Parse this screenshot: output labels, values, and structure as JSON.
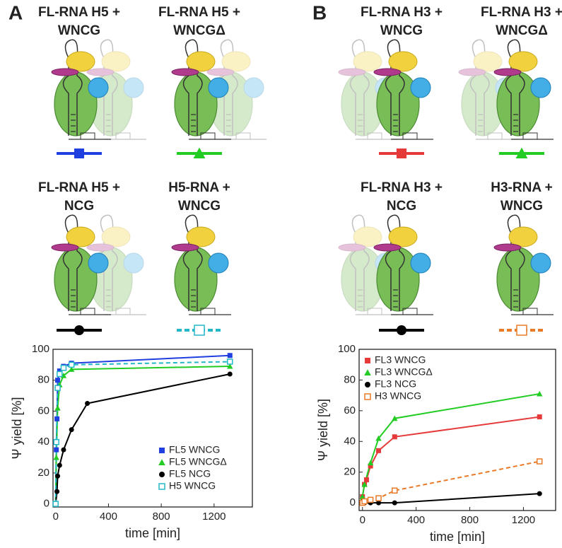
{
  "panels": [
    {
      "label": "A",
      "constructs": [
        {
          "title": [
            "FL-RNA H5 +",
            "WNCG"
          ]
        },
        {
          "title": [
            "FL-RNA H5 +",
            "WNCGΔ"
          ]
        },
        {
          "title": [
            "FL-RNA H5 +",
            "NCG"
          ]
        },
        {
          "title": [
            "H5-RNA +",
            "WNCG"
          ]
        }
      ]
    },
    {
      "label": "B",
      "constructs": [
        {
          "title": [
            "FL-RNA H3 +",
            "WNCG"
          ]
        },
        {
          "title": [
            "FL-RNA H3 +",
            "WNCGΔ"
          ]
        },
        {
          "title": [
            "FL-RNA H3 +",
            "NCG"
          ]
        },
        {
          "title": [
            "H3-RNA +",
            "WNCG"
          ]
        }
      ]
    }
  ],
  "chart_data": [
    {
      "type": "scatter",
      "xlabel": "time [min]",
      "ylabel": "Ψ yield [%]",
      "xlim": [
        -20,
        1490
      ],
      "xticks": [
        0,
        400,
        800,
        1200
      ],
      "ylim": [
        -2,
        100
      ],
      "yticks": [
        0,
        20,
        40,
        60,
        80,
        100
      ],
      "legend": "lower right",
      "series": [
        {
          "name": "FL5 WNCG",
          "color": "#1f3fe0",
          "marker": "square",
          "dashed": false,
          "x": [
            0,
            5,
            10,
            15,
            30,
            60,
            120,
            1320
          ],
          "values": [
            0,
            35,
            55,
            80,
            86,
            89,
            91,
            96
          ]
        },
        {
          "name": "FL5 WNCGΔ",
          "color": "#22cc22",
          "marker": "triangle",
          "dashed": false,
          "x": [
            0,
            5,
            15,
            30,
            60,
            120,
            1320
          ],
          "values": [
            0,
            30,
            62,
            77,
            83,
            87,
            89
          ]
        },
        {
          "name": "FL5 NCG",
          "color": "#000000",
          "marker": "circle",
          "dashed": false,
          "x": [
            0,
            10,
            15,
            30,
            60,
            120,
            240,
            1320
          ],
          "values": [
            0,
            8,
            18,
            25,
            35,
            48,
            65,
            84
          ]
        },
        {
          "name": "H5 WNCG",
          "color": "#22b8c8",
          "marker": "open-square",
          "dashed": true,
          "x": [
            0,
            5,
            15,
            30,
            60,
            120,
            1320
          ],
          "values": [
            0,
            40,
            75,
            84,
            88,
            90,
            92
          ]
        }
      ]
    },
    {
      "type": "scatter",
      "xlabel": "time [min]",
      "ylabel": "Ψ yield [%]",
      "xlim": [
        -25,
        1440
      ],
      "xticks": [
        0,
        400,
        800,
        1200
      ],
      "ylim": [
        -5,
        100
      ],
      "yticks": [
        0,
        20,
        40,
        60,
        80,
        100
      ],
      "legend": "upper left",
      "series": [
        {
          "name": "FL3 WNCG",
          "color": "#e63a3a",
          "marker": "square",
          "dashed": false,
          "x": [
            0,
            15,
            30,
            60,
            120,
            240,
            1320
          ],
          "values": [
            4,
            12,
            15,
            24,
            34,
            43,
            56
          ]
        },
        {
          "name": "FL3 WNCGΔ",
          "color": "#22cc22",
          "marker": "triangle",
          "dashed": false,
          "x": [
            0,
            15,
            60,
            120,
            240,
            1320
          ],
          "values": [
            4,
            12,
            26,
            42,
            55,
            71
          ]
        },
        {
          "name": "FL3 NCG",
          "color": "#000000",
          "marker": "circle",
          "dashed": false,
          "x": [
            0,
            15,
            60,
            120,
            240,
            1320
          ],
          "values": [
            1,
            0,
            0,
            0,
            0,
            6
          ]
        },
        {
          "name": "H3 WNCG",
          "color": "#e87a28",
          "marker": "open-square",
          "dashed": true,
          "x": [
            0,
            15,
            60,
            120,
            240,
            1320
          ],
          "values": [
            0,
            1,
            2,
            3,
            8,
            27
          ]
        }
      ]
    }
  ]
}
